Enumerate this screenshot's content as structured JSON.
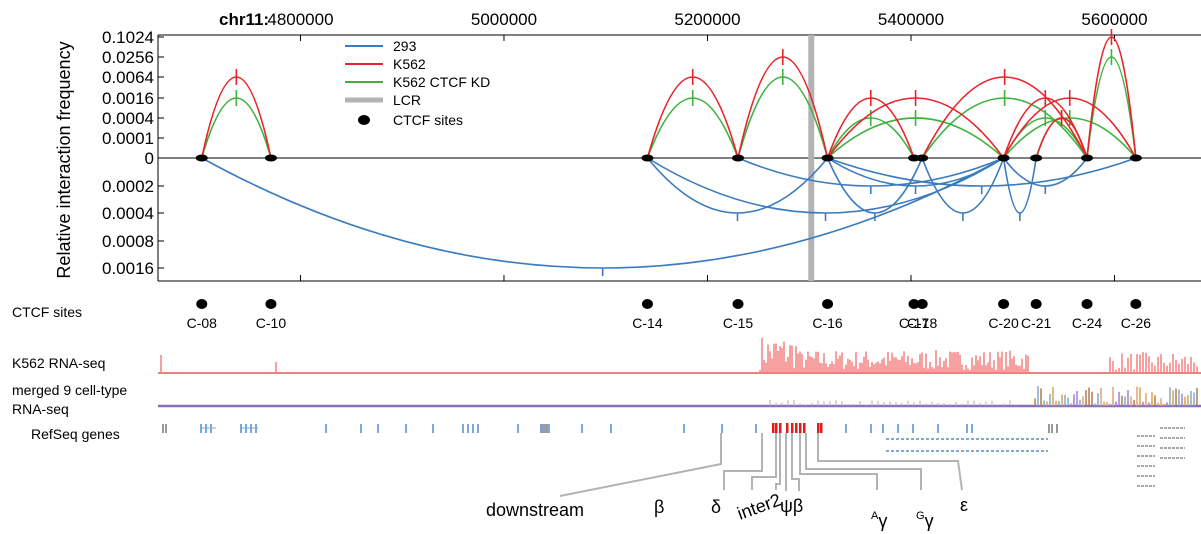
{
  "chart_data": {
    "type": "line",
    "chrom": "chr11:",
    "ylabel": "Relative interaction frequency",
    "x_ticks": [
      4800000,
      5000000,
      5200000,
      5400000,
      5600000
    ],
    "x_tick_labels": [
      "4800000",
      "5000000",
      "5200000",
      "5400000",
      "5600000"
    ],
    "xlim": [
      4660000,
      5685000
    ],
    "upper_ticks": [
      "0.1024",
      "0.0256",
      "0.0064",
      "0.0016",
      "0.0004",
      "0.0001",
      "0"
    ],
    "lower_ticks": [
      "0.0002",
      "0.0004",
      "0.0008",
      "0.0016"
    ],
    "legend": [
      "293",
      "K562",
      "K562 CTCF KD",
      "LCR",
      "CTCF sites"
    ],
    "colors": {
      "293": "#3b7bbf",
      "K562": "#e8242a",
      "K562 CTCF KD": "#3fb23f",
      "LCR": "#b3b3b3",
      "CTCF sites": "#000000"
    },
    "lcr_position": 5302000,
    "ctcf_sites": [
      {
        "label": "C-08",
        "pos": 4703000
      },
      {
        "label": "C-10",
        "pos": 4771000
      },
      {
        "label": "C-14",
        "pos": 5141000
      },
      {
        "label": "C-15",
        "pos": 5230000
      },
      {
        "label": "C-16",
        "pos": 5318000
      },
      {
        "label": "C-17",
        "pos": 5403000
      },
      {
        "label": "C-18",
        "pos": 5411000
      },
      {
        "label": "C-20",
        "pos": 5491000
      },
      {
        "label": "C-21",
        "pos": 5523000
      },
      {
        "label": "C-24",
        "pos": 5573000
      },
      {
        "label": "C-26",
        "pos": 5621000
      }
    ],
    "series": [
      {
        "name": "K562",
        "arcs": [
          {
            "from": "C-08",
            "to": "C-10",
            "value": "0.0064"
          },
          {
            "from": "C-14",
            "to": "C-15",
            "value": "0.0064"
          },
          {
            "from": "C-15",
            "to": "C-16",
            "value": "0.0256"
          },
          {
            "from": "C-16",
            "to": "C-17",
            "value": "0.0016"
          },
          {
            "from": "C-16",
            "to": "C-20",
            "value": "0.0016"
          },
          {
            "from": "C-18",
            "to": "C-24",
            "value": "0.0064"
          },
          {
            "from": "C-20",
            "to": "C-24",
            "value": "0.0016"
          },
          {
            "from": "C-20",
            "to": "C-26",
            "value": "0.0016"
          },
          {
            "from": "C-24",
            "to": "C-26",
            "value": "0.1024"
          },
          {
            "from": "C-21",
            "to": "C-24",
            "value": "0.0004"
          }
        ]
      },
      {
        "name": "K562 CTCF KD",
        "arcs": [
          {
            "from": "C-08",
            "to": "C-10",
            "value": "0.0016"
          },
          {
            "from": "C-14",
            "to": "C-15",
            "value": "0.0016"
          },
          {
            "from": "C-15",
            "to": "C-16",
            "value": "0.0064"
          },
          {
            "from": "C-16",
            "to": "C-17",
            "value": "0.0004"
          },
          {
            "from": "C-16",
            "to": "C-20",
            "value": "0.0004"
          },
          {
            "from": "C-18",
            "to": "C-24",
            "value": "0.0016"
          },
          {
            "from": "C-20",
            "to": "C-24",
            "value": "0.0004"
          },
          {
            "from": "C-20",
            "to": "C-26",
            "value": "0.0004"
          },
          {
            "from": "C-24",
            "to": "C-26",
            "value": "0.0256"
          },
          {
            "from": "C-21",
            "to": "C-24",
            "value": "0.0004"
          }
        ]
      },
      {
        "name": "293",
        "arcs": [
          {
            "from": "C-08",
            "to": "C-20",
            "value": "0.0016"
          },
          {
            "from": "C-14",
            "to": "C-16",
            "value": "0.0004"
          },
          {
            "from": "C-14",
            "to": "C-20",
            "value": "0.0004"
          },
          {
            "from": "C-15",
            "to": "C-20",
            "value": "0.0002"
          },
          {
            "from": "C-16",
            "to": "C-18",
            "value": "0.0004"
          },
          {
            "from": "C-16",
            "to": "C-20",
            "value": "0.0002"
          },
          {
            "from": "C-16",
            "to": "C-26",
            "value": "0.0002"
          },
          {
            "from": "C-18",
            "to": "C-20",
            "value": "0.0004"
          },
          {
            "from": "C-20",
            "to": "C-21",
            "value": "0.0004"
          },
          {
            "from": "C-20",
            "to": "C-24",
            "value": "0.0002"
          }
        ]
      }
    ]
  },
  "tracks": {
    "ctcf_label": "CTCF sites",
    "k562_rnaseq": "K562 RNA-seq",
    "merged_line1": "merged 9 cell-type",
    "merged_line2": "RNA-seq",
    "refseq": "RefSeq genes"
  },
  "genes": [
    "downstream",
    "β",
    "δ",
    "inter2",
    "ψβ",
    "Aγ",
    "Gγ",
    "ε"
  ],
  "gene_parts": {
    "a_sup": "A",
    "g_sup": "G",
    "gamma": "γ"
  }
}
